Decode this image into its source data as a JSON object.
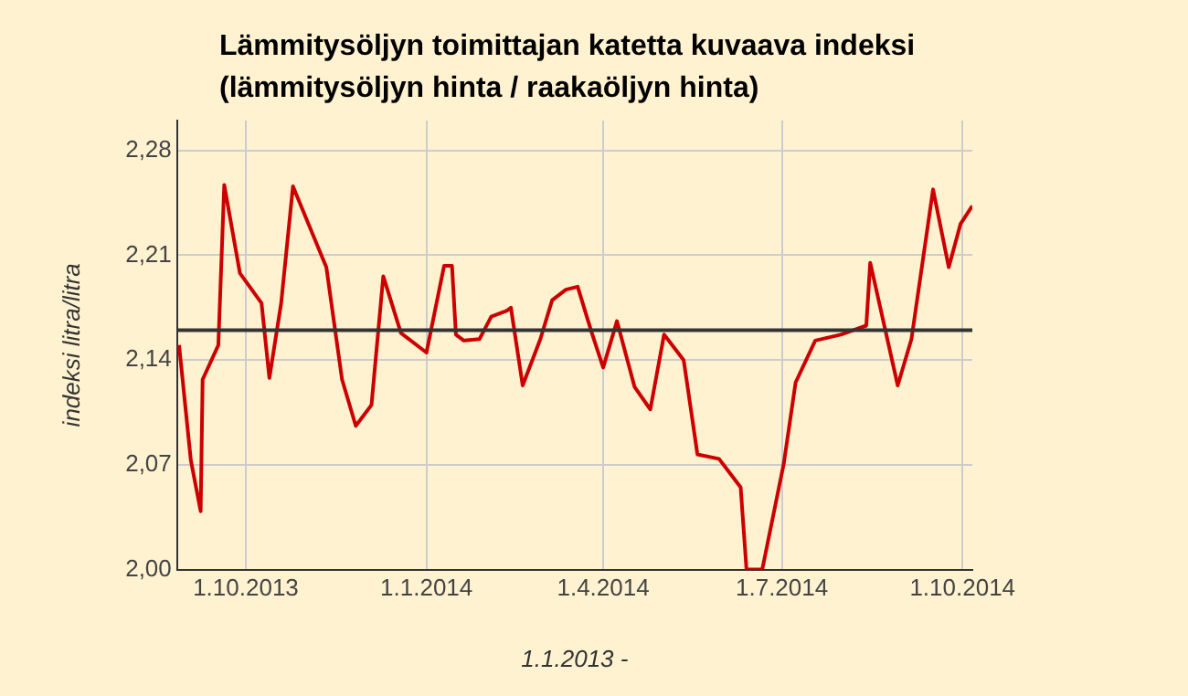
{
  "chart_data": {
    "type": "line",
    "title": "Lämmitysöljyn toimittajan katetta kuvaava indeksi (lämmitysöljyn hinta / raakaöljyn hinta)",
    "xlabel": "1.1.2013 -",
    "ylabel": "indeksi litra/litra",
    "x": [
      "2013-08-28",
      "2013-09-03",
      "2013-09-08",
      "2013-09-09",
      "2013-09-17",
      "2013-09-20",
      "2013-09-28",
      "2013-10-09",
      "2013-10-13",
      "2013-10-19",
      "2013-10-25",
      "2013-11-11",
      "2013-11-19",
      "2013-11-26",
      "2013-12-04",
      "2013-12-10",
      "2013-12-19",
      "2014-01-01",
      "2014-01-10",
      "2014-01-14",
      "2014-01-16",
      "2014-01-20",
      "2014-01-28",
      "2014-02-03",
      "2014-02-11",
      "2014-02-13",
      "2014-02-19",
      "2014-02-28",
      "2014-03-06",
      "2014-03-13",
      "2014-03-19",
      "2014-03-26",
      "2014-04-01",
      "2014-04-08",
      "2014-04-17",
      "2014-04-25",
      "2014-05-02",
      "2014-05-12",
      "2014-05-19",
      "2014-05-30",
      "2014-06-10",
      "2014-06-13",
      "2014-06-21",
      "2014-07-02",
      "2014-07-08",
      "2014-07-18",
      "2014-07-31",
      "2014-08-13",
      "2014-08-15",
      "2014-08-29",
      "2014-09-05",
      "2014-09-16",
      "2014-09-24",
      "2014-09-30",
      "2014-10-06"
    ],
    "series": [
      {
        "color": "#cc0000",
        "values": [
          2.15,
          2.073,
          2.039,
          2.127,
          2.15,
          2.257,
          2.198,
          2.178,
          2.128,
          2.178,
          2.256,
          2.202,
          2.127,
          2.096,
          2.11,
          2.196,
          2.158,
          2.145,
          2.203,
          2.203,
          2.157,
          2.153,
          2.154,
          2.169,
          2.173,
          2.175,
          2.123,
          2.154,
          2.18,
          2.187,
          2.189,
          2.159,
          2.135,
          2.166,
          2.122,
          2.107,
          2.157,
          2.14,
          2.077,
          2.074,
          2.055,
          2.0,
          2.0,
          2.071,
          2.125,
          2.153,
          2.157,
          2.163,
          2.205,
          2.123,
          2.154,
          2.254,
          2.202,
          2.231,
          2.243
        ]
      }
    ],
    "xlim": [
      "2013-08-27",
      "2014-10-06"
    ],
    "xticks": [
      {
        "value": "2013-10-01",
        "label": "1.10.2013"
      },
      {
        "value": "2014-01-01",
        "label": "1.1.2014"
      },
      {
        "value": "2014-04-01",
        "label": "1.4.2014"
      },
      {
        "value": "2014-07-01",
        "label": "1.7.2014"
      },
      {
        "value": "2014-10-01",
        "label": "1.10.2014"
      }
    ],
    "ylim": [
      2.0,
      2.3
    ],
    "yticks": [
      {
        "value": 2.0,
        "label": "2,00"
      },
      {
        "value": 2.07,
        "label": "2,07"
      },
      {
        "value": 2.14,
        "label": "2,14"
      },
      {
        "value": 2.21,
        "label": "2,21"
      },
      {
        "value": 2.28,
        "label": "2,28"
      }
    ],
    "ref_lines": [
      {
        "axis": "y",
        "value": 2.16,
        "color": "#333333"
      }
    ],
    "grid": true,
    "legend": false,
    "marker": "none",
    "line_style": "solid"
  }
}
